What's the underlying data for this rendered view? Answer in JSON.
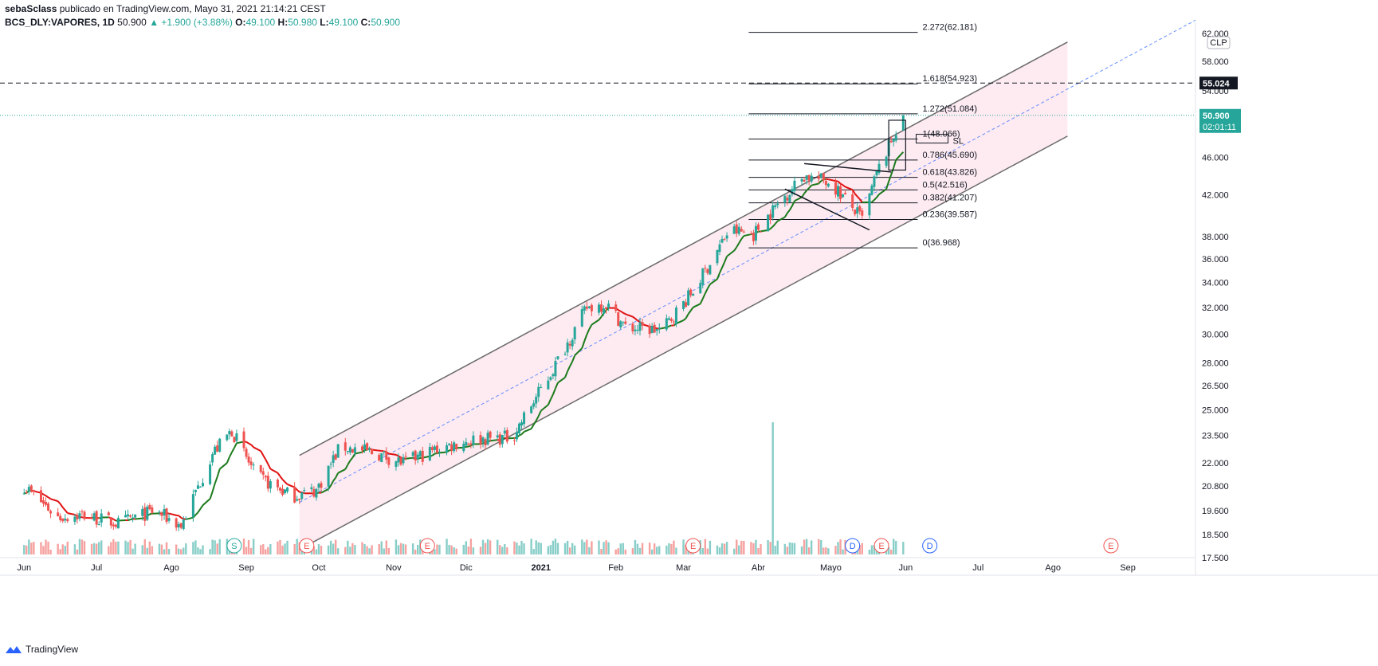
{
  "header": {
    "author": "sebaSclass",
    "published": "publicado en TradingView.com, Mayo 31, 2021 21:14:21 CEST",
    "symbol": "BCS_DLY:VAPORES, 1D",
    "last": "50.900",
    "change": "▲ +1.900 (+3.88%)",
    "o_label": "O:",
    "o_val": "49.100",
    "h_label": "H:",
    "h_val": "50.980",
    "l_label": "L:",
    "l_val": "49.100",
    "c_label": "C:",
    "c_val": "50.900"
  },
  "currency_label": "CLP",
  "brand": "TradingView",
  "price_tags": {
    "dashed_level": "55.024",
    "last_price": "50.900",
    "countdown": "02:01:11"
  },
  "colors": {
    "up": "#26a69a",
    "down": "#ef5350",
    "ma_up": "#1b7a1b",
    "ma_down": "#e01010",
    "channel_fill": "#fce4ec",
    "last_price_tag": "#26a69a"
  },
  "chart_data": {
    "type": "candlestick",
    "y_scale": "log",
    "ylim": [
      17.5,
      62.5
    ],
    "y_ticks": [
      17.5,
      18.5,
      19.6,
      20.8,
      22.0,
      23.5,
      25.0,
      26.5,
      28.0,
      30.0,
      32.0,
      34.0,
      36.0,
      38.0,
      42.0,
      46.0,
      50.0,
      54.0,
      58.0,
      62.0
    ],
    "y_tick_labels": [
      "17.500",
      "18.500",
      "19.600",
      "20.800",
      "22.000",
      "23.500",
      "25.000",
      "26.500",
      "28.000",
      "30.000",
      "32.000",
      "34.000",
      "36.000",
      "38.000",
      "42.000",
      "46.000",
      "50.000",
      "54.000",
      "58.000",
      "62.000"
    ],
    "x_labels": [
      "Jun",
      "Jul",
      "Ago",
      "Sep",
      "Oct",
      "Nov",
      "Dic",
      "2021",
      "Feb",
      "Mar",
      "Abr",
      "Mayo",
      "Jun",
      "Jul",
      "Ago",
      "Sep"
    ],
    "x_label_dates": [
      "2020-06-01",
      "2020-07-01",
      "2020-08-01",
      "2020-09-01",
      "2020-10-01",
      "2020-11-01",
      "2020-12-01",
      "2021-01-01",
      "2021-02-01",
      "2021-03-01",
      "2021-04-01",
      "2021-05-01",
      "2021-06-01",
      "2021-07-01",
      "2021-08-01",
      "2021-09-01"
    ],
    "close_anchors": [
      [
        "2020-06-01",
        20.8
      ],
      [
        "2020-06-15",
        19.3
      ],
      [
        "2020-06-25",
        19.4
      ],
      [
        "2020-07-10",
        19.0
      ],
      [
        "2020-07-25",
        19.6
      ],
      [
        "2020-08-05",
        18.9
      ],
      [
        "2020-08-18",
        22.5
      ],
      [
        "2020-08-26",
        23.8
      ],
      [
        "2020-09-05",
        21.3
      ],
      [
        "2020-09-20",
        20.3
      ],
      [
        "2020-09-30",
        20.6
      ],
      [
        "2020-10-10",
        22.9
      ],
      [
        "2020-10-25",
        22.5
      ],
      [
        "2020-11-05",
        22.0
      ],
      [
        "2020-11-20",
        22.8
      ],
      [
        "2020-12-05",
        23.3
      ],
      [
        "2020-12-20",
        23.4
      ],
      [
        "2021-01-05",
        27.3
      ],
      [
        "2021-01-20",
        32.0
      ],
      [
        "2021-01-28",
        32.3
      ],
      [
        "2021-02-05",
        30.5
      ],
      [
        "2021-02-20",
        30.3
      ],
      [
        "2021-03-05",
        33.3
      ],
      [
        "2021-03-20",
        38.6
      ],
      [
        "2021-03-30",
        38.2
      ],
      [
        "2021-04-10",
        41.4
      ],
      [
        "2021-04-20",
        44.0
      ],
      [
        "2021-05-01",
        43.3
      ],
      [
        "2021-05-14",
        39.6
      ],
      [
        "2021-05-20",
        44.2
      ],
      [
        "2021-05-28",
        49.1
      ],
      [
        "2021-05-31",
        50.9
      ]
    ],
    "last_ohlc": {
      "open": 49.1,
      "high": 50.98,
      "low": 49.1,
      "close": 50.9
    },
    "fibonacci": [
      {
        "label": "0(36.968)",
        "price": 36.968
      },
      {
        "label": "0.236(39.587)",
        "price": 39.587
      },
      {
        "label": "0.382(41.207)",
        "price": 41.207
      },
      {
        "label": "0.5(42.516)",
        "price": 42.516
      },
      {
        "label": "0.618(43.826)",
        "price": 43.826
      },
      {
        "label": "0.786(45.690)",
        "price": 45.69
      },
      {
        "label": "1(48.066)",
        "price": 48.066
      },
      {
        "label": "1.272(51.084)",
        "price": 51.084
      },
      {
        "label": "1.618(54.923)",
        "price": 54.923
      },
      {
        "label": "2.272(62.181)",
        "price": 62.181
      }
    ],
    "fib_start": "2021-03-28",
    "fib_end": "2021-06-06",
    "horizontal_levels": [
      {
        "price": 55.024,
        "style": "dashed"
      },
      {
        "price": 50.9,
        "style": "dotted"
      }
    ],
    "channel": {
      "lower": [
        [
          "2020-09-23",
          17.85
        ],
        [
          "2021-05-26",
          38.5
        ]
      ],
      "upper_offset": [
        [
          "2020-09-23",
          22.4
        ]
      ],
      "extend_to": "2021-08-07"
    },
    "annotations": [
      "SL"
    ],
    "events": [
      {
        "label": "S",
        "date": "2020-08-27"
      },
      {
        "label": "E",
        "date": "2020-09-26"
      },
      {
        "label": "E",
        "date": "2020-11-15"
      },
      {
        "label": "E",
        "date": "2021-03-05"
      },
      {
        "label": "D",
        "date": "2021-05-10"
      },
      {
        "label": "E",
        "date": "2021-05-22"
      },
      {
        "label": "D",
        "date": "2021-06-11"
      },
      {
        "label": "E",
        "date": "2021-08-25"
      }
    ]
  }
}
